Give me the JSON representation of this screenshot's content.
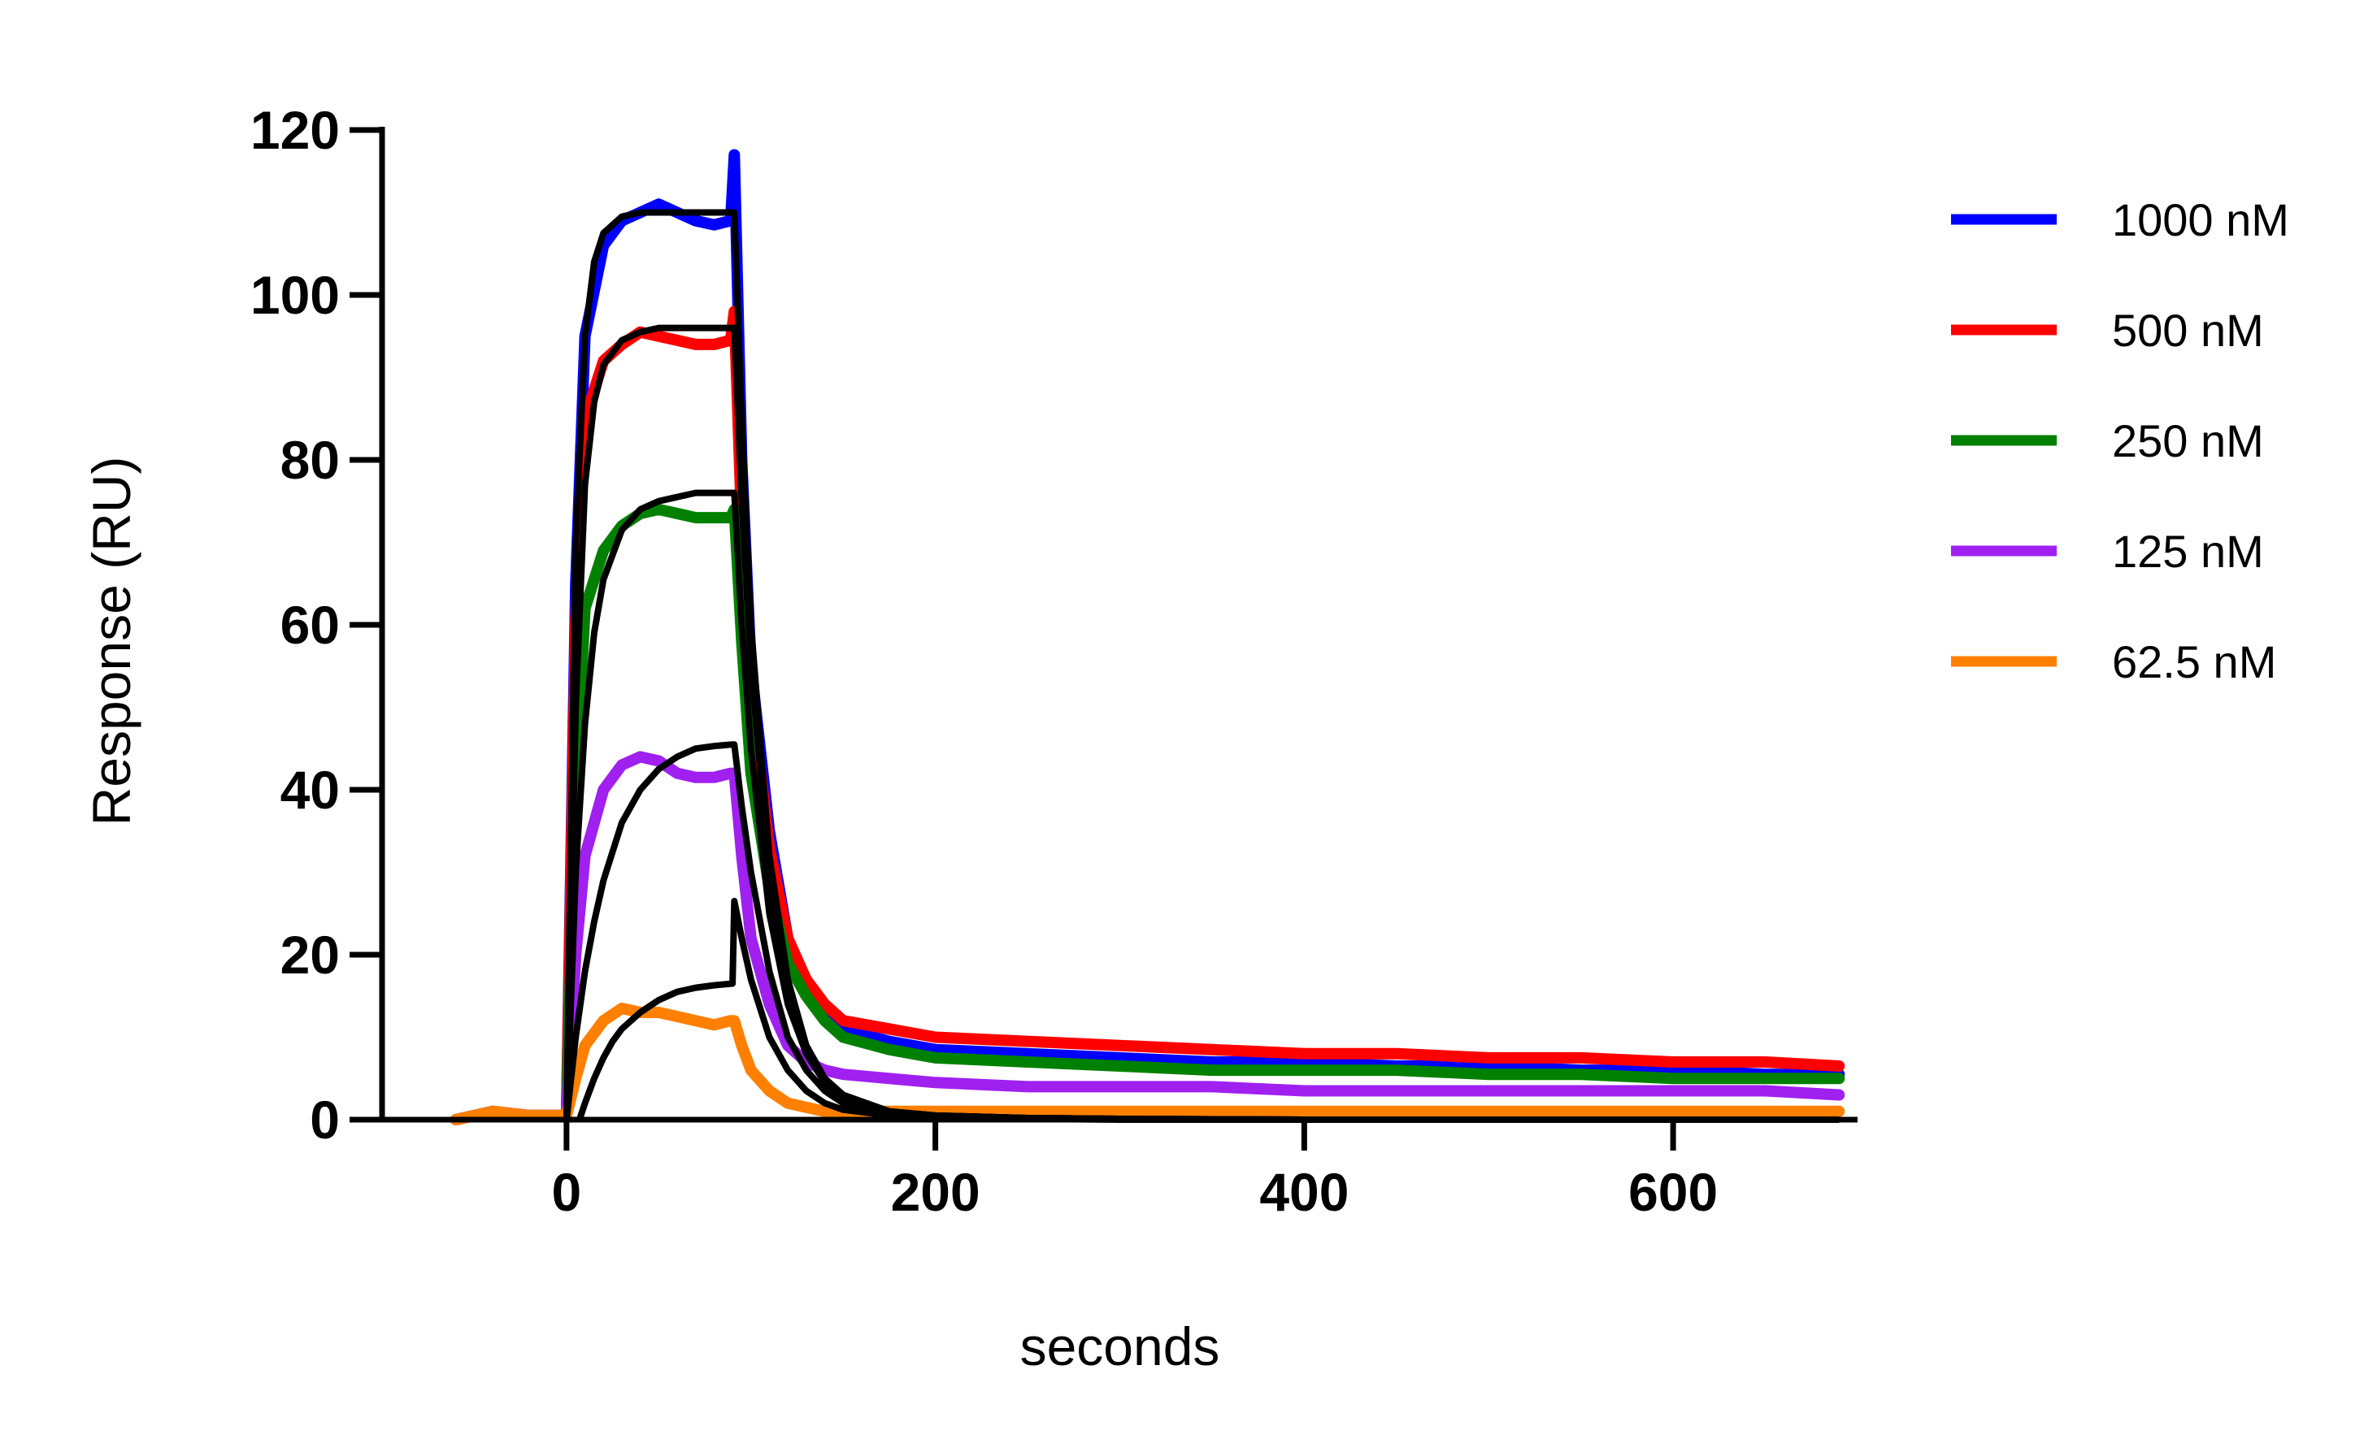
{
  "chart_data": {
    "type": "line",
    "title": "",
    "xlabel": "seconds",
    "ylabel": "Response (RU)",
    "xlim": [
      -100,
      700
    ],
    "ylim": [
      0,
      120
    ],
    "xticks": [
      0,
      200,
      400,
      600
    ],
    "yticks": [
      0,
      20,
      40,
      60,
      80,
      100,
      120
    ],
    "grid": false,
    "legend_position": "right",
    "fit_color": "#000000",
    "series": [
      {
        "name": "1000 nM",
        "color": "#0000ff",
        "x": [
          -60,
          -40,
          -20,
          0,
          5,
          10,
          20,
          30,
          40,
          50,
          60,
          70,
          80,
          89,
          91,
          95,
          100,
          110,
          120,
          130,
          140,
          150,
          175,
          200,
          250,
          300,
          350,
          400,
          450,
          500,
          550,
          600,
          650,
          690
        ],
        "y": [
          0,
          1,
          0.5,
          0.5,
          65,
          95,
          106,
          109,
          110,
          111,
          110,
          109,
          108.5,
          109,
          117,
          80,
          55,
          35,
          22,
          16,
          13,
          11,
          9.5,
          8.5,
          8,
          7.5,
          7,
          7,
          6.5,
          6.5,
          6,
          6,
          5.5,
          5.5
        ]
      },
      {
        "name": "500 nM",
        "color": "#ff0000",
        "x": [
          -60,
          -40,
          -20,
          0,
          5,
          10,
          20,
          30,
          40,
          50,
          60,
          70,
          80,
          89,
          91,
          95,
          100,
          110,
          120,
          130,
          140,
          150,
          175,
          200,
          250,
          300,
          350,
          400,
          450,
          500,
          550,
          600,
          650,
          690
        ],
        "y": [
          0,
          1,
          0.5,
          0.5,
          60,
          85,
          92,
          94,
          95.5,
          95,
          94.5,
          94,
          94,
          94.5,
          98,
          72,
          52,
          33,
          22,
          17,
          14,
          12,
          11,
          10,
          9.5,
          9,
          8.5,
          8,
          8,
          7.5,
          7.5,
          7,
          7,
          6.5
        ]
      },
      {
        "name": "250 nM",
        "color": "#008000",
        "x": [
          -60,
          -40,
          -20,
          0,
          5,
          10,
          20,
          30,
          40,
          50,
          60,
          70,
          80,
          89,
          91,
          95,
          100,
          110,
          120,
          130,
          140,
          150,
          175,
          200,
          250,
          300,
          350,
          400,
          450,
          500,
          550,
          600,
          650,
          690
        ],
        "y": [
          0,
          1,
          0.5,
          0.5,
          40,
          62,
          69,
          72,
          73.5,
          74,
          73.5,
          73,
          73,
          73,
          74,
          58,
          42,
          28,
          19,
          15,
          12,
          10,
          8.5,
          7.5,
          7,
          6.5,
          6,
          6,
          6,
          5.5,
          5.5,
          5,
          5,
          5
        ]
      },
      {
        "name": "125 nM",
        "color": "#a020f0",
        "x": [
          -60,
          -40,
          -20,
          0,
          5,
          10,
          20,
          30,
          40,
          50,
          60,
          70,
          80,
          89,
          91,
          95,
          100,
          110,
          120,
          130,
          140,
          150,
          175,
          200,
          250,
          300,
          350,
          400,
          450,
          500,
          550,
          600,
          650,
          690
        ],
        "y": [
          0,
          1,
          0.5,
          0.5,
          20,
          32,
          40,
          43,
          44,
          43.5,
          42,
          41.5,
          41.5,
          42,
          42,
          32,
          22,
          14,
          9,
          7,
          6,
          5.5,
          5,
          4.5,
          4,
          4,
          4,
          3.5,
          3.5,
          3.5,
          3.5,
          3.5,
          3.5,
          3
        ]
      },
      {
        "name": "62.5 nM",
        "color": "#ff8000",
        "x": [
          -60,
          -40,
          -20,
          0,
          5,
          10,
          20,
          30,
          40,
          50,
          60,
          70,
          80,
          89,
          91,
          95,
          100,
          110,
          120,
          130,
          140,
          150,
          175,
          200,
          250,
          300,
          350,
          400,
          450,
          500,
          550,
          600,
          650,
          690
        ],
        "y": [
          0,
          1,
          0.5,
          0.5,
          5,
          9,
          12,
          13.5,
          13,
          13,
          12.5,
          12,
          11.5,
          12,
          12,
          9,
          6,
          3.5,
          2,
          1.5,
          1,
          1,
          1,
          1,
          1,
          1,
          1,
          1,
          1,
          1,
          1,
          1,
          1,
          1
        ]
      }
    ],
    "fits": [
      {
        "x": [
          0,
          5,
          10,
          15,
          20,
          30,
          40,
          50,
          60,
          70,
          80,
          90,
          91,
          95,
          100,
          110,
          120,
          130,
          140,
          150,
          175,
          200,
          250,
          300,
          400,
          500,
          600,
          690
        ],
        "y": [
          0,
          70,
          95,
          104,
          107.5,
          109.5,
          110,
          110,
          110,
          110,
          110,
          110,
          110,
          85,
          60,
          32,
          17,
          9,
          5,
          3,
          1,
          0.5,
          0.2,
          0.1,
          0,
          0,
          0,
          0
        ]
      },
      {
        "x": [
          0,
          5,
          10,
          15,
          20,
          30,
          40,
          50,
          60,
          70,
          80,
          90,
          91,
          95,
          100,
          110,
          120,
          130,
          140,
          150,
          175,
          200,
          250,
          300,
          400,
          500,
          600,
          690
        ],
        "y": [
          0,
          50,
          77,
          87,
          91.5,
          94.5,
          95.5,
          96,
          96,
          96,
          96,
          96,
          96,
          75,
          55,
          30,
          16,
          9,
          5,
          3,
          1,
          0.5,
          0.2,
          0.1,
          0,
          0,
          0,
          0
        ]
      },
      {
        "x": [
          0,
          5,
          10,
          15,
          20,
          30,
          40,
          50,
          60,
          70,
          80,
          90,
          91,
          95,
          100,
          110,
          120,
          130,
          140,
          150,
          175,
          200,
          250,
          300,
          400,
          500,
          600,
          690
        ],
        "y": [
          0,
          30,
          48,
          59,
          65.5,
          71.5,
          74,
          75,
          75.5,
          76,
          76,
          76,
          76,
          60,
          45,
          25,
          14,
          8,
          4.5,
          2.5,
          1,
          0.5,
          0.2,
          0.1,
          0,
          0,
          0,
          0
        ]
      },
      {
        "x": [
          0,
          5,
          10,
          15,
          20,
          30,
          40,
          50,
          60,
          70,
          80,
          90,
          91,
          95,
          100,
          110,
          120,
          130,
          140,
          150,
          175,
          200,
          250,
          300,
          400,
          500,
          600,
          690
        ],
        "y": [
          0,
          10,
          18,
          24,
          29,
          36,
          40,
          42.5,
          44,
          45,
          45.3,
          45.5,
          45.5,
          38,
          30,
          18,
          10,
          6,
          3.5,
          2,
          0.8,
          0.4,
          0.2,
          0.1,
          0,
          0,
          0,
          0
        ]
      },
      {
        "x": [
          7,
          10,
          15,
          20,
          25,
          30,
          40,
          50,
          60,
          70,
          80,
          90,
          91,
          95,
          100,
          110,
          120,
          130,
          140,
          150,
          175,
          200,
          250,
          300,
          400,
          500,
          600,
          690
        ],
        "y": [
          0,
          2,
          5,
          7.5,
          9.5,
          11,
          13,
          14.5,
          15.5,
          16,
          16.3,
          16.5,
          26.5,
          22,
          17,
          10,
          6,
          3.5,
          2,
          1.2,
          0.5,
          0.2,
          0.1,
          0,
          0,
          0,
          0,
          0
        ]
      }
    ]
  }
}
